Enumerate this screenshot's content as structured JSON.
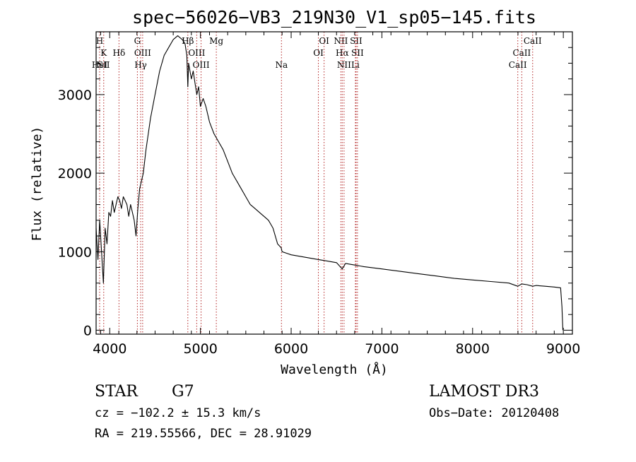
{
  "chart_data": {
    "type": "line",
    "title": "spec−56026−VB3_219N30_V1_sp05−145.fits",
    "xlabel": "Wavelength (Å)",
    "ylabel": "Flux (relative)",
    "xlim": [
      3850,
      9100
    ],
    "ylim": [
      -50,
      3800
    ],
    "x_ticks": [
      4000,
      5000,
      6000,
      7000,
      8000,
      9000
    ],
    "y_ticks": [
      0,
      1000,
      2000,
      3000
    ],
    "series": [
      {
        "name": "flux",
        "x": [
          3850,
          3870,
          3890,
          3910,
          3930,
          3950,
          3970,
          3990,
          4010,
          4030,
          4050,
          4070,
          4090,
          4110,
          4130,
          4150,
          4170,
          4190,
          4210,
          4230,
          4250,
          4270,
          4290,
          4310,
          4330,
          4350,
          4370,
          4400,
          4450,
          4500,
          4550,
          4600,
          4650,
          4700,
          4750,
          4800,
          4830,
          4850,
          4861,
          4870,
          4900,
          4920,
          4940,
          4960,
          4980,
          5000,
          5030,
          5060,
          5100,
          5150,
          5200,
          5250,
          5300,
          5350,
          5400,
          5450,
          5500,
          5550,
          5600,
          5650,
          5700,
          5750,
          5800,
          5850,
          5890,
          5900,
          5950,
          6000,
          6100,
          6200,
          6300,
          6400,
          6500,
          6563,
          6600,
          6700,
          6800,
          7000,
          7200,
          7400,
          7600,
          7800,
          8000,
          8200,
          8400,
          8498,
          8542,
          8600,
          8662,
          8700,
          8800,
          8900,
          8970,
          8985,
          8995
        ],
        "y": [
          1300,
          900,
          1400,
          1000,
          600,
          1300,
          1100,
          1500,
          1450,
          1650,
          1500,
          1600,
          1700,
          1650,
          1550,
          1700,
          1650,
          1600,
          1450,
          1600,
          1500,
          1400,
          1200,
          1550,
          1800,
          1900,
          2000,
          2300,
          2700,
          3000,
          3300,
          3500,
          3600,
          3700,
          3750,
          3700,
          3650,
          3500,
          3100,
          3400,
          3200,
          3300,
          3150,
          3000,
          3100,
          2850,
          2950,
          2850,
          2650,
          2500,
          2400,
          2300,
          2150,
          2000,
          1900,
          1800,
          1700,
          1600,
          1550,
          1500,
          1450,
          1400,
          1300,
          1100,
          1050,
          1000,
          980,
          960,
          940,
          920,
          900,
          880,
          860,
          780,
          850,
          830,
          810,
          780,
          750,
          720,
          690,
          660,
          640,
          620,
          600,
          560,
          590,
          580,
          560,
          570,
          560,
          550,
          540,
          300,
          0
        ]
      }
    ],
    "line_markers": [
      {
        "label": "H",
        "x": 3889,
        "row": 0
      },
      {
        "label": "K",
        "x": 3934,
        "row": 1
      },
      {
        "label": "HeI",
        "x": 3889,
        "row": 2
      },
      {
        "label": "SII",
        "x": 3933,
        "row": 2
      },
      {
        "label": "Hδ",
        "x": 4102,
        "row": 1
      },
      {
        "label": "G",
        "x": 4305,
        "row": 0
      },
      {
        "label": "OIII",
        "x": 4363,
        "row": 1
      },
      {
        "label": "Hγ",
        "x": 4341,
        "row": 2
      },
      {
        "label": "Hβ",
        "x": 4861,
        "row": 0
      },
      {
        "label": "OIII",
        "x": 4959,
        "row": 1
      },
      {
        "label": "OIII",
        "x": 5007,
        "row": 2
      },
      {
        "label": "Mg",
        "x": 5175,
        "row": 0
      },
      {
        "label": "Na",
        "x": 5893,
        "row": 2
      },
      {
        "label": "OI",
        "x": 6300,
        "row": 1
      },
      {
        "label": "OI",
        "x": 6363,
        "row": 0
      },
      {
        "label": "NII",
        "x": 6548,
        "row": 0
      },
      {
        "label": "Hα",
        "x": 6563,
        "row": 1
      },
      {
        "label": "NII",
        "x": 6583,
        "row": 2
      },
      {
        "label": "SII",
        "x": 6716,
        "row": 0
      },
      {
        "label": "SII",
        "x": 6731,
        "row": 1
      },
      {
        "label": "Li",
        "x": 6708,
        "row": 2
      },
      {
        "label": "CaII",
        "x": 8662,
        "row": 0
      },
      {
        "label": "CaII",
        "x": 8542,
        "row": 1
      },
      {
        "label": "CaII",
        "x": 8498,
        "row": 2
      }
    ]
  },
  "info": {
    "object_class": "STAR",
    "subclass": "G7",
    "survey": "LAMOST DR3",
    "cz": "cz = −102.2 ± 15.3 km/s",
    "obs_date": "Obs−Date: 20120408",
    "coords": "RA = 219.55566, DEC =  28.91029"
  },
  "colors": {
    "spectrum": "#000000",
    "marker_line": "#b22222",
    "axis": "#000000",
    "background": "#ffffff"
  }
}
